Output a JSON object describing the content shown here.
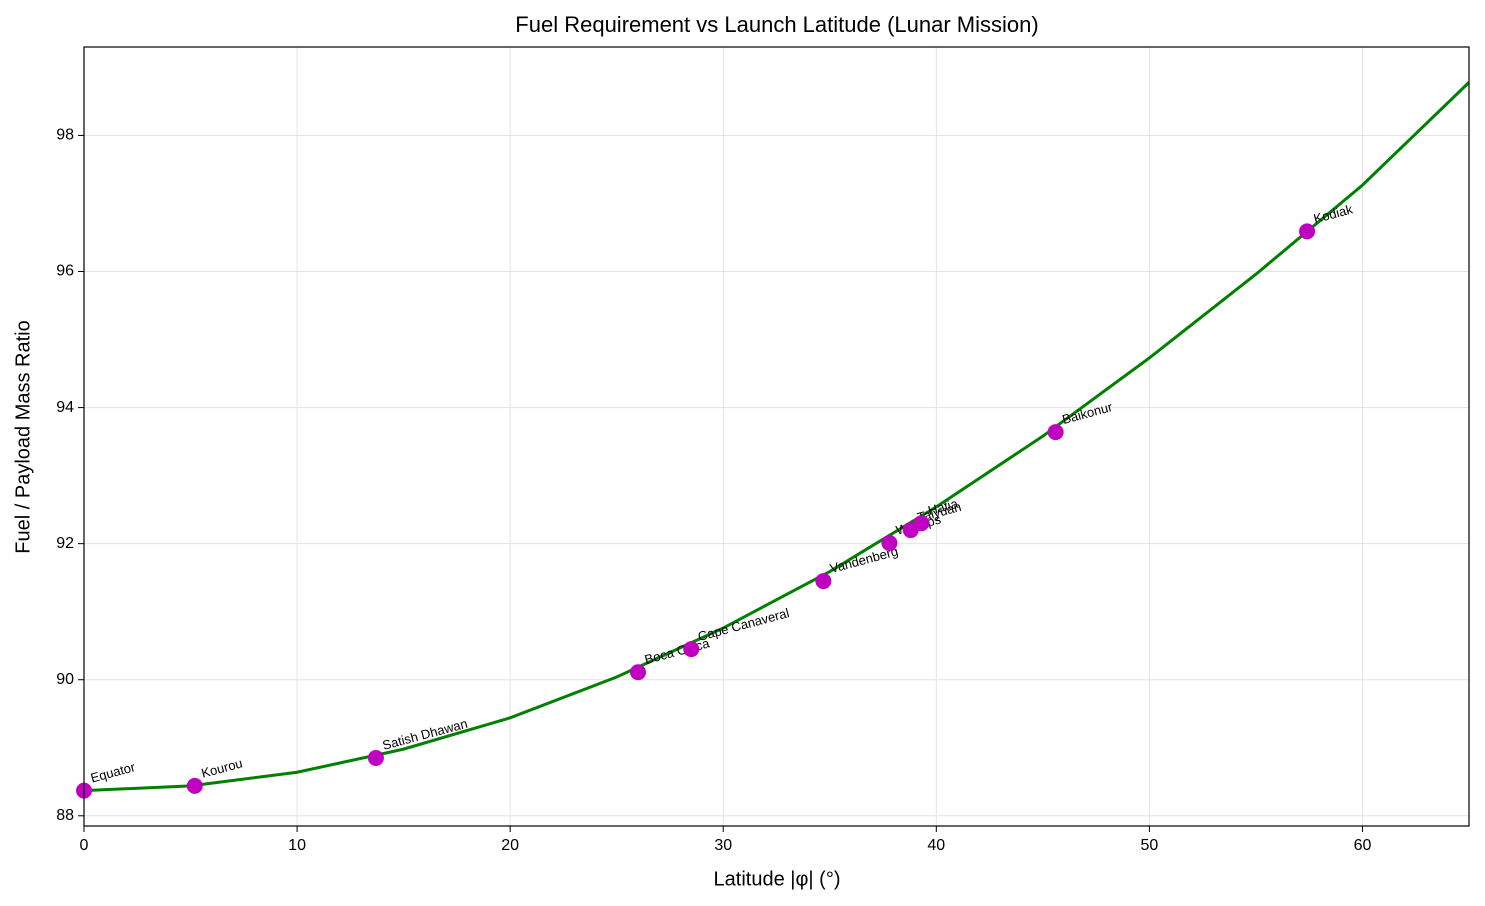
{
  "chart_data": {
    "type": "line",
    "title": "Fuel Requirement vs Launch Latitude (Lunar Mission)",
    "x_label": "Latitude |φ| (°)",
    "y_label": "Fuel / Payload Mass Ratio",
    "xlim": [
      0,
      65
    ],
    "ylim": [
      87.85,
      99.3
    ],
    "xticks": [
      0,
      10,
      20,
      30,
      40,
      50,
      60
    ],
    "yticks": [
      88,
      90,
      92,
      94,
      96,
      98
    ],
    "grid": true,
    "curve": {
      "color": "#008000",
      "x": [
        0,
        5,
        10,
        15,
        20,
        25,
        30,
        35,
        40,
        45,
        50,
        55,
        60,
        65
      ],
      "values": [
        88.37,
        88.44,
        88.64,
        88.98,
        89.44,
        90.04,
        90.76,
        91.59,
        92.54,
        93.58,
        94.73,
        95.96,
        97.27,
        98.78
      ]
    },
    "points": {
      "color": "#c000c0",
      "labels": [
        "Equator",
        "Kourou",
        "Satish Dhawan",
        "Boca Chica",
        "Cape Canaveral",
        "Vandenberg",
        "Wallops",
        "Taiyuan",
        "Hatia",
        "Baikonur",
        "Kodiak"
      ],
      "x": [
        0,
        5.2,
        13.7,
        26.0,
        28.5,
        34.7,
        37.8,
        38.8,
        39.3,
        45.6,
        57.4
      ],
      "values": [
        88.37,
        88.44,
        88.85,
        90.11,
        90.45,
        91.45,
        92.01,
        92.2,
        92.3,
        93.64,
        96.59
      ]
    }
  }
}
